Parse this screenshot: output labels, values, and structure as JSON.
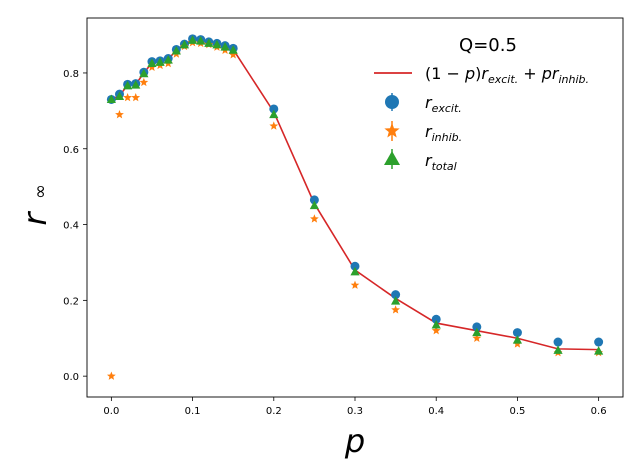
{
  "chart_data": {
    "type": "scatter",
    "xlabel": "p",
    "ylabel_base": "r",
    "ylabel_sub": "∞",
    "xlim": [
      -0.03,
      0.63
    ],
    "ylim": [
      -0.055,
      0.945
    ],
    "xticks": [
      0.0,
      0.1,
      0.2,
      0.3,
      0.4,
      0.5,
      0.6
    ],
    "xtick_labels": [
      "0.0",
      "0.1",
      "0.2",
      "0.3",
      "0.4",
      "0.5",
      "0.6"
    ],
    "yticks": [
      0.0,
      0.2,
      0.4,
      0.6,
      0.8
    ],
    "ytick_labels": [
      "0.0",
      "0.2",
      "0.4",
      "0.6",
      "0.8"
    ],
    "legend": {
      "title": "Q=0.5",
      "position": "top-right",
      "entries": [
        {
          "key": "line",
          "label": "(1 − p)r_excit. + pr_inhib."
        },
        {
          "key": "excit",
          "label": "r_excit."
        },
        {
          "key": "inhib",
          "label": "r_inhib."
        },
        {
          "key": "total",
          "label": "r_total"
        }
      ]
    },
    "x": [
      0.0,
      0.01,
      0.02,
      0.03,
      0.04,
      0.05,
      0.06,
      0.07,
      0.08,
      0.09,
      0.1,
      0.11,
      0.12,
      0.13,
      0.14,
      0.15,
      0.2,
      0.25,
      0.3,
      0.35,
      0.4,
      0.45,
      0.5,
      0.55,
      0.6
    ],
    "series": [
      {
        "name": "(1-p)r_excit. + pr_inhib.",
        "key": "line",
        "type": "line",
        "color": "#d62728",
        "values": [
          0.73,
          0.74,
          0.768,
          0.77,
          0.8,
          0.827,
          0.83,
          0.836,
          0.86,
          0.875,
          0.888,
          0.886,
          0.88,
          0.876,
          0.87,
          0.862,
          0.697,
          0.455,
          0.28,
          0.205,
          0.14,
          0.12,
          0.1,
          0.072,
          0.07
        ]
      },
      {
        "name": "r_excit.",
        "key": "excit",
        "type": "scatter",
        "marker": "circle",
        "color": "#1f77b4",
        "values": [
          0.73,
          0.744,
          0.77,
          0.772,
          0.802,
          0.83,
          0.832,
          0.838,
          0.862,
          0.876,
          0.89,
          0.888,
          0.882,
          0.878,
          0.872,
          0.865,
          0.705,
          0.465,
          0.29,
          0.215,
          0.15,
          0.13,
          0.115,
          0.09,
          0.09
        ]
      },
      {
        "name": "r_inhib.",
        "key": "inhib",
        "type": "scatter",
        "marker": "star",
        "color": "#ff7f0e",
        "values": [
          0.0,
          0.69,
          0.735,
          0.735,
          0.775,
          0.815,
          0.82,
          0.825,
          0.85,
          0.87,
          0.88,
          0.878,
          0.875,
          0.868,
          0.86,
          0.848,
          0.66,
          0.415,
          0.24,
          0.175,
          0.12,
          0.1,
          0.085,
          0.062,
          0.062
        ]
      },
      {
        "name": "r_total",
        "key": "total",
        "type": "scatter",
        "marker": "triangle",
        "color": "#2ca02c",
        "values": [
          0.73,
          0.738,
          0.766,
          0.768,
          0.798,
          0.825,
          0.828,
          0.834,
          0.858,
          0.874,
          0.886,
          0.884,
          0.878,
          0.874,
          0.868,
          0.86,
          0.69,
          0.45,
          0.275,
          0.198,
          0.135,
          0.115,
          0.095,
          0.068,
          0.066
        ]
      }
    ]
  }
}
